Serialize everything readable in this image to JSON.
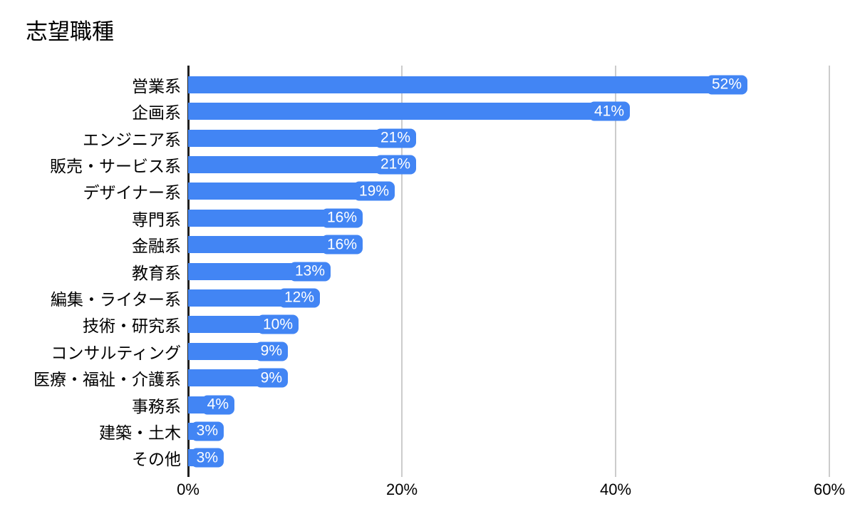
{
  "title": "志望職種",
  "chart_data": {
    "type": "bar",
    "orientation": "horizontal",
    "title": "志望職種",
    "categories": [
      "営業系",
      "企画系",
      "エンジニア系",
      "販売・サービス系",
      "デザイナー系",
      "専門系",
      "金融系",
      "教育系",
      "編集・ライター系",
      "技術・研究系",
      "コンサルティング",
      "医療・福祉・介護系",
      "事務系",
      "建築・土木",
      "その他"
    ],
    "values": [
      52,
      41,
      21,
      21,
      19,
      16,
      16,
      13,
      12,
      10,
      9,
      9,
      4,
      3,
      3
    ],
    "value_labels": [
      "52%",
      "41%",
      "21%",
      "21%",
      "19%",
      "16%",
      "16%",
      "13%",
      "12%",
      "10%",
      "9%",
      "9%",
      "4%",
      "3%",
      "3%"
    ],
    "x_tick_values": [
      0,
      20,
      40,
      60
    ],
    "x_tick_labels": [
      "0%",
      "20%",
      "40%",
      "60%"
    ],
    "xlim": [
      0,
      60
    ],
    "grid": true,
    "legend": "none",
    "bar_color": "#4285f4",
    "value_label_color": "#ffffff",
    "grid_color": "#cccccc",
    "axis_line_color": "#212121",
    "text_color": "#000000"
  }
}
